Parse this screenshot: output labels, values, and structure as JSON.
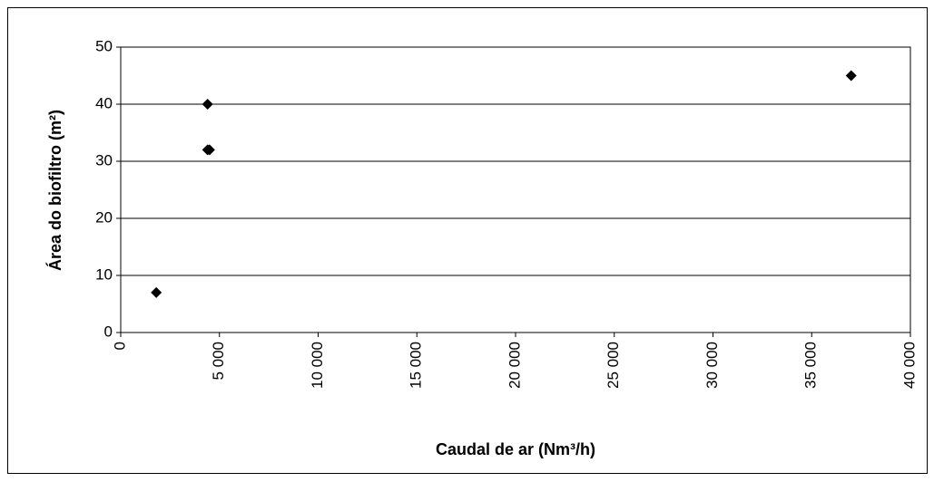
{
  "chart_data": {
    "type": "scatter",
    "xlabel": "Caudal de ar (Nm³/h)",
    "ylabel": "Área do biofiltro (m²)",
    "series": [
      {
        "color": "#000000",
        "x": [
          1800,
          4400,
          4400,
          4500,
          37000
        ],
        "values": [
          7,
          40,
          32,
          32,
          45
        ]
      }
    ],
    "xlim": [
      0,
      40000
    ],
    "xticks": [
      0,
      {
        "value": 5000,
        "label": "5 000"
      },
      {
        "value": 10000,
        "label": "10 000"
      },
      {
        "value": 15000,
        "label": "15 000"
      },
      {
        "value": 20000,
        "label": "20 000"
      },
      {
        "value": 25000,
        "label": "25 000"
      },
      {
        "value": 30000,
        "label": "30 000"
      },
      {
        "value": 35000,
        "label": "35 000"
      },
      {
        "value": 40000,
        "label": "40 000"
      }
    ],
    "ylim": [
      0,
      50
    ],
    "yticks": [
      0,
      10,
      20,
      30,
      40,
      50
    ],
    "grid": true
  }
}
